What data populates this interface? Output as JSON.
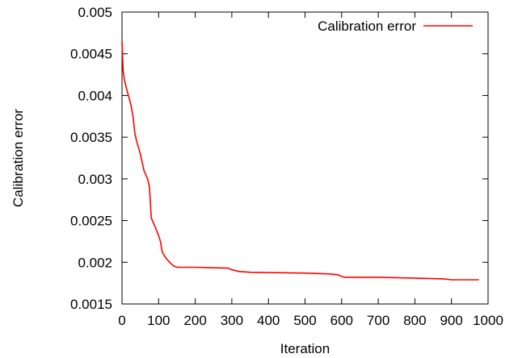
{
  "chart_data": {
    "type": "line",
    "xlabel": "Iteration",
    "ylabel": "Calibration error",
    "xlim": [
      0,
      1000
    ],
    "ylim": [
      0.0015,
      0.005
    ],
    "xticks": [
      "0",
      "100",
      "200",
      "300",
      "400",
      "500",
      "600",
      "700",
      "800",
      "900",
      "1000"
    ],
    "yticks": [
      "0.0015",
      "0.002",
      "0.0025",
      "0.003",
      "0.0035",
      "0.004",
      "0.0045",
      "0.005"
    ],
    "legend_position": "top-right",
    "grid": false,
    "series": [
      {
        "name": "Calibration error",
        "color": "#ff0000",
        "x": [
          0,
          3,
          6,
          10,
          15,
          20,
          25,
          30,
          35,
          40,
          50,
          60,
          70,
          75,
          80,
          90,
          100,
          105,
          110,
          120,
          130,
          140,
          150,
          200,
          290,
          300,
          320,
          350,
          500,
          570,
          590,
          600,
          610,
          700,
          800,
          880,
          900,
          975
        ],
        "y": [
          0.00465,
          0.0043,
          0.0042,
          0.00412,
          0.00404,
          0.00396,
          0.00387,
          0.00375,
          0.00355,
          0.00345,
          0.0033,
          0.0031,
          0.003,
          0.0029,
          0.00253,
          0.00243,
          0.00232,
          0.00225,
          0.00212,
          0.00205,
          0.002,
          0.00196,
          0.00194,
          0.00194,
          0.00193,
          0.00191,
          0.00189,
          0.00188,
          0.00187,
          0.00186,
          0.00185,
          0.00183,
          0.00182,
          0.00182,
          0.00181,
          0.0018,
          0.00179,
          0.00179
        ]
      }
    ]
  }
}
